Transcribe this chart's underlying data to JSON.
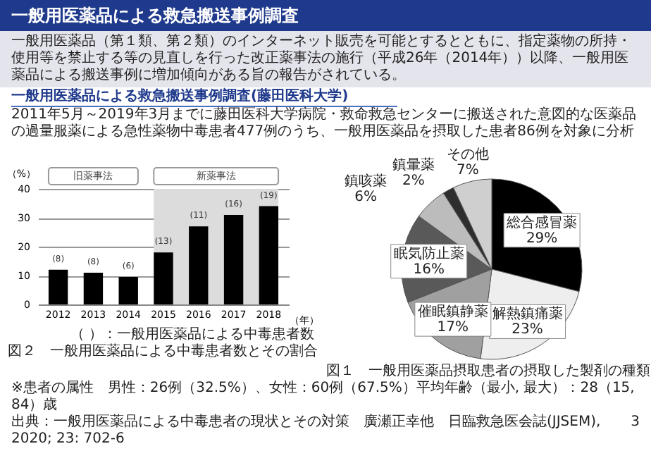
{
  "chart_data": [
    {
      "type": "bar",
      "title": "一般用医薬品による救急搬送事例調査",
      "subtitle": "一般用医薬品（第１類、第２類）のインターネット販売を可能とするとともに、指定薬物の所持・使用等を禁止する等の見直しを行った改正薬事法の施行（平成26年（2014年））以降、一般用医薬品による搬送事例に増加傾向がある旨の報告がされている。",
      "annotations": [
        "一般用医薬品による救急搬送事例調査(藤田医科大学)",
        "2011年5月～2019年3月までに藤田医科大学病院・救命救急センターに搬送された意図的な医薬品の過量服薬による急性薬物中毒患者477例のうち、一般用医薬品を摂取した患者86例を対象に分析",
        "（ ）：一般用医薬品による中毒患者数",
        "図２　一般用医薬品による中毒患者数とその割合",
        "旧薬事法",
        {
          "text": "(8)",
          "x": "2012",
          "y": 12
        },
        {
          "text": "(8)",
          "x": "2013",
          "y": 11
        },
        {
          "text": "(6)",
          "x": "2014",
          "y": 9.5
        },
        {
          "text": "(13)",
          "x": "2015",
          "y": 18
        },
        {
          "text": "(11)",
          "x": "2016",
          "y": 27
        },
        {
          "text": "(16)",
          "x": "2017",
          "y": 31
        },
        {
          "text": "(19)",
          "x": "2018",
          "y": 34
        }
      ],
      "categories": [
        "2012",
        "2013",
        "2014",
        "2015",
        "2016",
        "2017",
        "2018"
      ],
      "values": [
        12,
        11,
        9.5,
        18,
        27,
        31,
        34
      ],
      "color": "#000000",
      "xlabel": "（年）",
      "ylabel": "（%）",
      "ylim": [
        0,
        40
      ],
      "yticks": [
        0,
        10,
        20,
        30,
        40
      ],
      "grid": "y",
      "bands": [
        {
          "axis": "x",
          "from": "2015",
          "to": "2018",
          "label": "新薬事法",
          "color": "#dcdcdc"
        }
      ]
    },
    {
      "type": "pie",
      "categories": [
        "総合感冒薬",
        "解熱鎮痛薬",
        "催眠鎮静薬",
        "眠気防止薬",
        "鎮咳薬",
        "鎮暈薬",
        "その他"
      ],
      "values": [
        29,
        23,
        17,
        16,
        6,
        2,
        7
      ],
      "value_labels": [
        "29%",
        "23%",
        "17%",
        "16%",
        "6%",
        "2%",
        "7%"
      ],
      "colors": [
        "#000000",
        "#eeeeee",
        "#a0a0a0",
        "#595959",
        "#bcbcbc",
        "#2e2e2e",
        "#cfcfcf"
      ],
      "annotations": [
        "図１　一般用医薬品摂取患者の摂取した製剤の種類",
        "※患者の属性　男性：26例（32.5%）、女性：60例（67.5%）平均年齢（最小, 最大）：28（15, 84）歳",
        "出典：一般用医薬品による中毒患者の現状とその対策　廣瀬正幸他　日臨救急医会誌(JJSEM), 2020; 23: 702-6",
        "3"
      ]
    }
  ]
}
